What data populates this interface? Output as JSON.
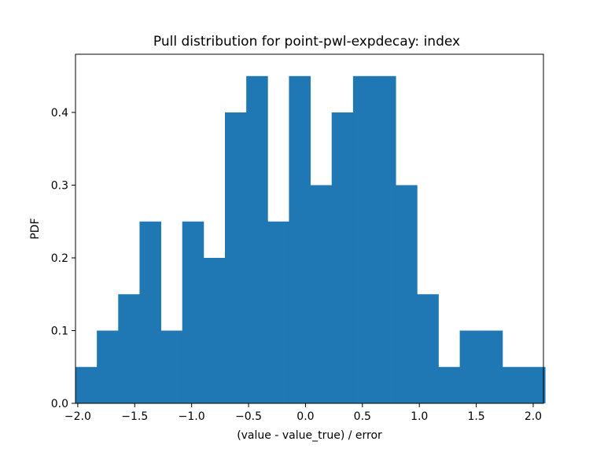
{
  "chart_data": {
    "type": "bar",
    "title": "Pull distribution for point-pwl-expdecay: index",
    "xlabel": "(value - value_true) / error",
    "ylabel": "PDF",
    "xlim": [
      -2.02,
      2.09
    ],
    "ylim": [
      0,
      0.48
    ],
    "bar_color": "#1f77b4",
    "grid": false,
    "legend": "none",
    "bins": {
      "edges": [
        -2.02,
        -1.8325,
        -1.645,
        -1.4575,
        -1.27,
        -1.0825,
        -0.895,
        -0.7075,
        -0.52,
        -0.3325,
        -0.145,
        0.0425,
        0.23,
        0.4175,
        0.605,
        0.7925,
        0.98,
        1.1675,
        1.355,
        1.5425,
        1.73,
        1.9175,
        2.105
      ],
      "values": [
        0.05,
        0.1,
        0.15,
        0.25,
        0.1,
        0.25,
        0.2,
        0.4,
        0.45,
        0.25,
        0.45,
        0.3,
        0.4,
        0.45,
        0.45,
        0.3,
        0.15,
        0.05,
        0.1,
        0.1,
        0.05,
        0.05
      ]
    },
    "x_ticks": [
      {
        "value": -2.0,
        "label": "−2.0"
      },
      {
        "value": -1.5,
        "label": "−1.5"
      },
      {
        "value": -1.0,
        "label": "−1.0"
      },
      {
        "value": -0.5,
        "label": "−0.5"
      },
      {
        "value": 0.0,
        "label": "0.0"
      },
      {
        "value": 0.5,
        "label": "0.5"
      },
      {
        "value": 1.0,
        "label": "1.0"
      },
      {
        "value": 1.5,
        "label": "1.5"
      },
      {
        "value": 2.0,
        "label": "2.0"
      }
    ],
    "y_ticks": [
      {
        "value": 0.0,
        "label": "0.0"
      },
      {
        "value": 0.1,
        "label": "0.1"
      },
      {
        "value": 0.2,
        "label": "0.2"
      },
      {
        "value": 0.3,
        "label": "0.3"
      },
      {
        "value": 0.4,
        "label": "0.4"
      }
    ]
  }
}
